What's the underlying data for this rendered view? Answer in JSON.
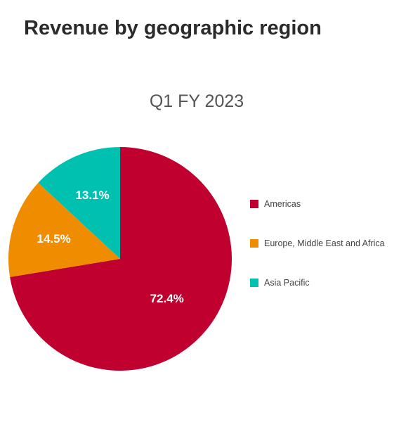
{
  "page": {
    "title": "Revenue by geographic region"
  },
  "chart_data": {
    "type": "pie",
    "title": "Q1 FY 2023",
    "slices": [
      {
        "name": "Americas",
        "value": 72.4,
        "label": "72.4%",
        "color": "#c0002f"
      },
      {
        "name": "Europe, Middle East and Africa",
        "value": 14.5,
        "label": "14.5%",
        "color": "#f08c00"
      },
      {
        "name": "Asia Pacific",
        "value": 13.1,
        "label": "13.1%",
        "color": "#00c1b0"
      }
    ],
    "start": "12 o'clock",
    "direction": "clockwise",
    "legend_position": "right"
  }
}
